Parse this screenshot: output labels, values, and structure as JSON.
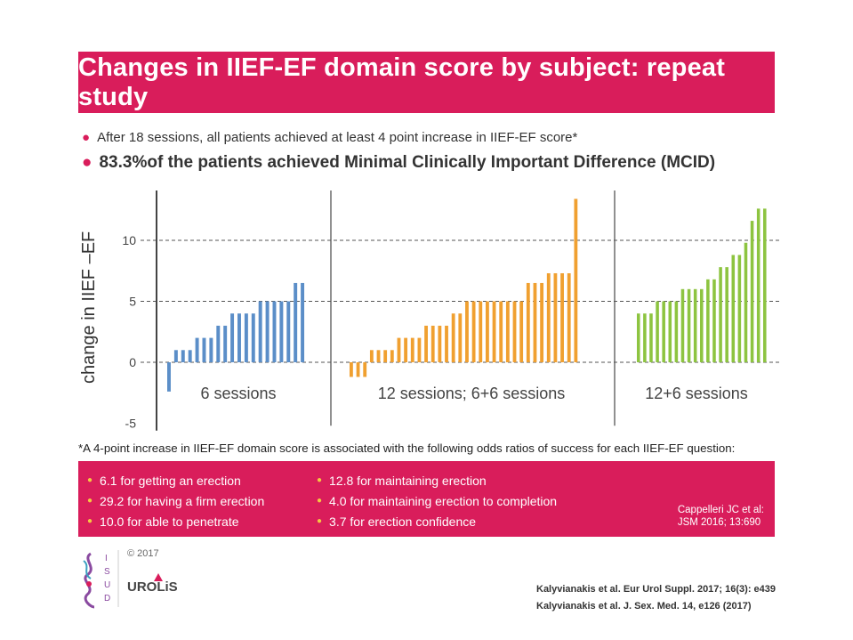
{
  "title": "Changes in IIEF-EF domain score by subject: repeat study",
  "bullets": [
    "After 18 sessions, all patients achieved at least 4 point increase in IIEF-EF score*",
    "83.3%of the patients achieved Minimal Clinically Important Difference (MCID)"
  ],
  "footnote": "*A 4-point increase in IIEF-EF domain score is associated with the following odds ratios of success for each IIEF-EF question:",
  "odds": {
    "col1": [
      "6.1 for getting an erection",
      "29.2 for having a firm erection",
      "10.0 for able to penetrate"
    ],
    "col2": [
      "12.8 for maintaining erection",
      "4.0 for maintaining erection to completion",
      "3.7 for erection confidence"
    ],
    "reference": [
      "Cappelleri JC et al:",
      "JSM 2016; 13:690"
    ]
  },
  "copyright": "© 2017",
  "logo_texts": [
    "ISUD",
    "UROLiS"
  ],
  "citations": [
    "Kalyvianakis et al. Eur Urol Suppl. 2017; 16(3): e439",
    "Kalyvianakis et al. J. Sex. Med. 14, e126 (2017)"
  ],
  "colors": {
    "brand": "#d91d5b",
    "blue": "#5b8ec8",
    "orange": "#f0a030",
    "green": "#8dc440",
    "bullet_accent": "#f5c842"
  },
  "chart_data": {
    "type": "bar",
    "ylabel": "change in IIEF –EF",
    "ylim": [
      -5,
      14
    ],
    "yticks": [
      -5,
      0,
      5,
      10
    ],
    "grid": "dashed at 5 and 10 and 0",
    "series": [
      {
        "name": "6 sessions",
        "color": "#5b8ec8",
        "values": [
          -2.4,
          1,
          1,
          1,
          2,
          2,
          2,
          3,
          3,
          4,
          4,
          4,
          4,
          5,
          5,
          5,
          5,
          5,
          6.5,
          6.5
        ]
      },
      {
        "name": "12 sessions; 6+6 sessions",
        "color": "#f0a030",
        "values": [
          -1.2,
          -1.2,
          -1.2,
          1,
          1,
          1,
          1,
          2,
          2,
          2,
          2,
          3,
          3,
          3,
          3,
          4,
          4,
          5,
          5,
          5,
          5,
          5,
          5,
          5,
          5,
          5,
          6.5,
          6.5,
          6.5,
          7.3,
          7.3,
          7.3,
          7.3,
          13.4
        ]
      },
      {
        "name": "12+6 sessions",
        "color": "#8dc440",
        "values": [
          4,
          4,
          4,
          5,
          5,
          5,
          5,
          6,
          6,
          6,
          6,
          6.8,
          6.8,
          7.8,
          7.8,
          8.8,
          8.8,
          9.8,
          11.6,
          12.6,
          12.6
        ]
      }
    ]
  }
}
